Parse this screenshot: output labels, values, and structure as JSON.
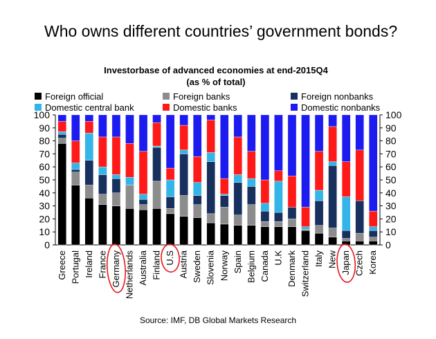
{
  "headline": "Who owns different countries’ government bonds?",
  "source": "Source: IMF, DB Global Markets Research",
  "chart_data": {
    "type": "bar",
    "stacked": true,
    "title": "Investorbase of advanced economies at end-2015Q4",
    "subtitle": "(as % of total)",
    "xlabel": "",
    "ylabel": "",
    "ylim": [
      0,
      100
    ],
    "yticks": [
      "0",
      "10",
      "20",
      "30",
      "40",
      "50",
      "60",
      "70",
      "80",
      "90",
      "100"
    ],
    "legend_position": "top",
    "categories": [
      "Greece",
      "Portugal",
      "Ireland",
      "France",
      "Germany",
      "Netherlands",
      "Australia",
      "Finland",
      "U.S",
      "Austria",
      "Sweden",
      "Slovenia",
      "Norway",
      "Spain",
      "Belgium",
      "Canada",
      "U.K",
      "Denmark",
      "Switzerland",
      "Italy",
      "New",
      "Japan",
      "Czech",
      "Korea"
    ],
    "circled": [
      "Germany",
      "U.S",
      "Japan"
    ],
    "series": [
      {
        "name": "Foreign official",
        "color": "#000000",
        "values": [
          78,
          46,
          36,
          31,
          30,
          28,
          27,
          28,
          24,
          22,
          21,
          17,
          16,
          15,
          15,
          14,
          14,
          14,
          11,
          9,
          6,
          3,
          3,
          3
        ]
      },
      {
        "name": "Foreign banks",
        "color": "#8c8c8c",
        "values": [
          4,
          10,
          10,
          8,
          10,
          18,
          4,
          21,
          4,
          16,
          10,
          7,
          13,
          8,
          16,
          4,
          4,
          6,
          1,
          6,
          7,
          2,
          6,
          3
        ]
      },
      {
        "name": "Foreign nonbanks",
        "color": "#17305e",
        "values": [
          3,
          2,
          19,
          15,
          11,
          0,
          4,
          26,
          9,
          32,
          7,
          40,
          9,
          25,
          14,
          8,
          7,
          9,
          0,
          19,
          48,
          6,
          25,
          5
        ]
      },
      {
        "name": "Domestic central bank",
        "color": "#33b5e8",
        "values": [
          2,
          5,
          21,
          6,
          3,
          6,
          4,
          1,
          13,
          3,
          10,
          7,
          1,
          6,
          6,
          6,
          24,
          0,
          2,
          8,
          3,
          26,
          0,
          3
        ]
      },
      {
        "name": "Domestic banks",
        "color": "#ff1a1a",
        "values": [
          8,
          17,
          9,
          23,
          29,
          26,
          33,
          18,
          9,
          19,
          20,
          25,
          12,
          29,
          21,
          18,
          8,
          24,
          15,
          30,
          27,
          27,
          39,
          12
        ]
      },
      {
        "name": "Domestic nonbanks",
        "color": "#1c1cf0",
        "values": [
          5,
          20,
          5,
          17,
          17,
          22,
          28,
          6,
          41,
          8,
          32,
          4,
          49,
          17,
          28,
          50,
          43,
          47,
          71,
          28,
          9,
          36,
          27,
          74
        ]
      }
    ]
  }
}
